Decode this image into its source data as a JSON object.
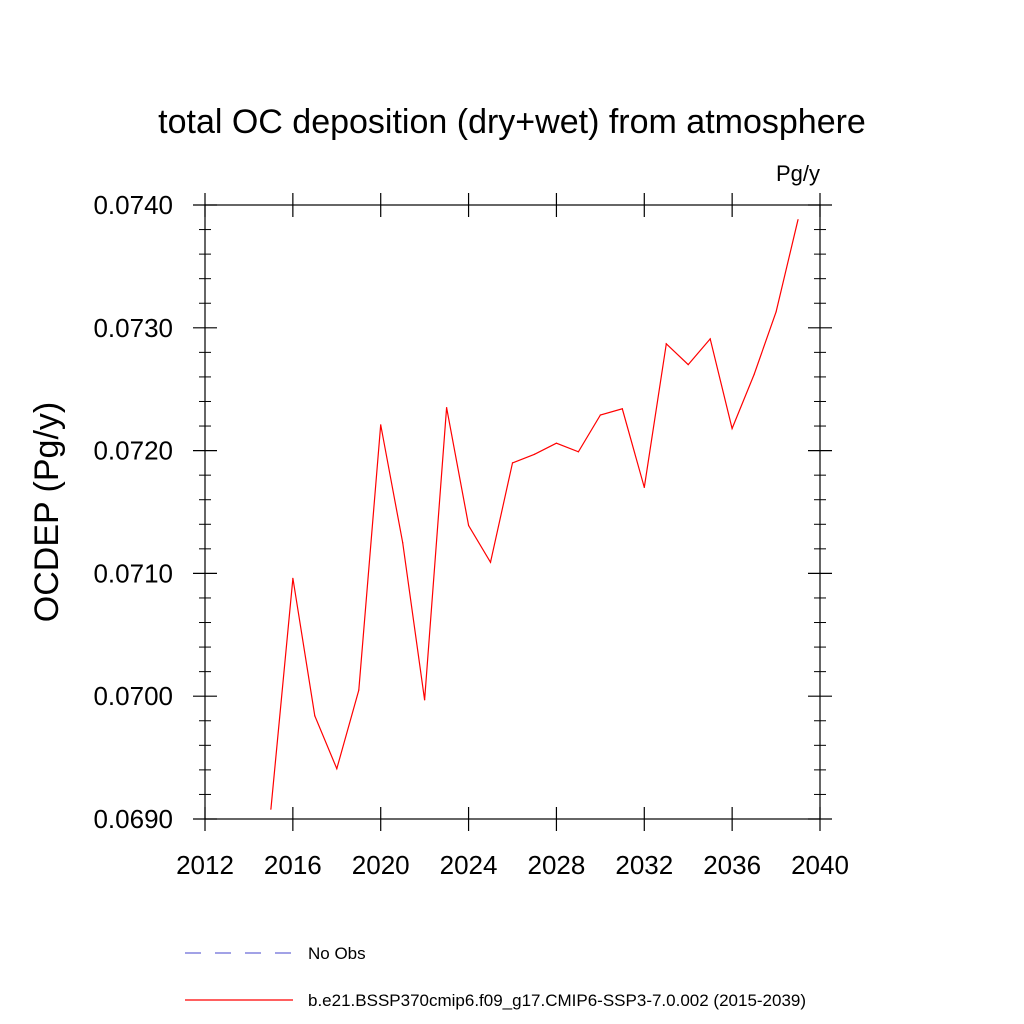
{
  "chart_data": {
    "type": "line",
    "title": "total OC deposition (dry+wet) from atmosphere",
    "units_label": "Pg/y",
    "ylabel": "OCDEP  (Pg/y)",
    "xlabel": "",
    "xlim": [
      2012,
      2040
    ],
    "ylim": [
      0.069,
      0.074
    ],
    "x_ticks": [
      2012,
      2016,
      2020,
      2024,
      2028,
      2032,
      2036,
      2040
    ],
    "x_tick_labels": [
      "2012",
      "2016",
      "2020",
      "2024",
      "2028",
      "2032",
      "2036",
      "2040"
    ],
    "y_ticks": [
      0.069,
      0.07,
      0.071,
      0.072,
      0.073,
      0.074
    ],
    "y_tick_labels": [
      "0.0690",
      "0.0700",
      "0.0710",
      "0.0720",
      "0.0730",
      "0.0740"
    ],
    "grid": false,
    "legend_position": "bottom",
    "series": [
      {
        "name": "b.e21.BSSP370cmip6.f09_g17.CMIP6-SSP3-7.0.002 (2015-2039)",
        "color": "#ff0000",
        "style": "solid",
        "x": [
          2015,
          2016,
          2017,
          2018,
          2019,
          2020,
          2021,
          2022,
          2023,
          2024,
          2025,
          2026,
          2027,
          2028,
          2029,
          2030,
          2031,
          2032,
          2033,
          2034,
          2035,
          2036,
          2037,
          2038,
          2039
        ],
        "y": [
          0.06908,
          0.07096,
          0.06984,
          0.06941,
          0.07005,
          0.07221,
          0.07125,
          0.06997,
          0.07235,
          0.07139,
          0.07109,
          0.0719,
          0.07197,
          0.07206,
          0.07199,
          0.07229,
          0.07234,
          0.0717,
          0.07287,
          0.0727,
          0.07291,
          0.07218,
          0.07262,
          0.07313,
          0.07388
        ]
      }
    ],
    "legend": [
      {
        "label": "No Obs",
        "color": "#6a6ad8",
        "style": "dashed"
      },
      {
        "label": "b.e21.BSSP370cmip6.f09_g17.CMIP6-SSP3-7.0.002 (2015-2039)",
        "color": "#ff0000",
        "style": "solid"
      }
    ]
  }
}
